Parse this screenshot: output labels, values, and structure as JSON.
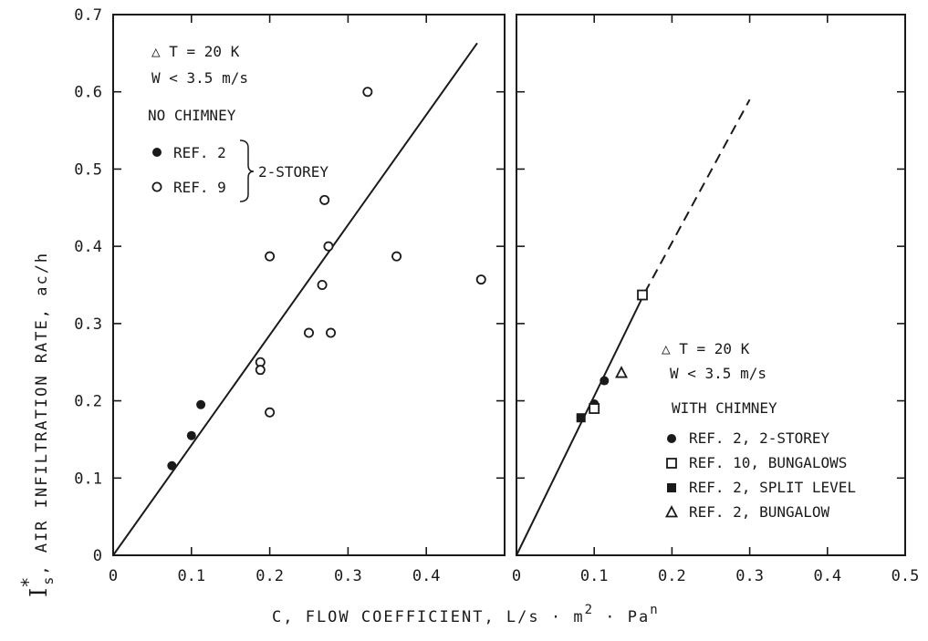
{
  "chart_data": [
    {
      "type": "scatter",
      "panel": "left",
      "xlim": [
        0,
        0.5
      ],
      "ylim": [
        0,
        0.7
      ],
      "x_ticks": [
        "0",
        "0.1",
        "0.2",
        "0.3",
        "0.4"
      ],
      "y_ticks": [
        "0",
        "0.1",
        "0.2",
        "0.3",
        "0.4",
        "0.5",
        "0.6",
        "0.7"
      ],
      "annotations": [
        "△ T = 20 K",
        "W < 3.5 m/s",
        "NO CHIMNEY"
      ],
      "legend_group_label": "2-STOREY",
      "legend": [
        {
          "marker": "filled-circle",
          "label": "REF. 2"
        },
        {
          "marker": "open-circle",
          "label": "REF. 9"
        }
      ],
      "series": [
        {
          "ref": "REF. 2",
          "marker": "filled-circle",
          "points": [
            [
              0.075,
              0.116
            ],
            [
              0.1,
              0.155
            ],
            [
              0.112,
              0.195
            ]
          ]
        },
        {
          "ref": "REF. 9",
          "marker": "open-circle",
          "points": [
            [
              0.2,
              0.387
            ],
            [
              0.27,
              0.46
            ],
            [
              0.275,
              0.4
            ],
            [
              0.325,
              0.6
            ],
            [
              0.362,
              0.387
            ],
            [
              0.47,
              0.357
            ],
            [
              0.25,
              0.288
            ],
            [
              0.278,
              0.288
            ],
            [
              0.267,
              0.35
            ],
            [
              0.188,
              0.25
            ],
            [
              0.188,
              0.24
            ],
            [
              0.2,
              0.185
            ]
          ]
        }
      ],
      "fit_line": {
        "from": [
          0,
          0
        ],
        "to": [
          0.465,
          0.663
        ],
        "style": "solid"
      }
    },
    {
      "type": "scatter",
      "panel": "right",
      "xlim": [
        0,
        0.5
      ],
      "ylim": [
        0,
        0.7
      ],
      "x_ticks": [
        "0",
        "0.1",
        "0.2",
        "0.3",
        "0.4",
        "0.5"
      ],
      "annotations": [
        "△ T = 20 K",
        "W < 3.5 m/s",
        "WITH CHIMNEY"
      ],
      "legend": [
        {
          "marker": "filled-circle",
          "label": "REF. 2, 2-STOREY"
        },
        {
          "marker": "open-square",
          "label": "REF. 10, BUNGALOWS"
        },
        {
          "marker": "filled-square",
          "label": "REF. 2, SPLIT LEVEL"
        },
        {
          "marker": "open-triangle",
          "label": "REF. 2, BUNGALOW"
        }
      ],
      "series": [
        {
          "ref": "REF. 2, 2-STOREY",
          "marker": "filled-circle",
          "points": [
            [
              0.113,
              0.226
            ],
            [
              0.1,
              0.196
            ]
          ]
        },
        {
          "ref": "REF. 10, BUNGALOWS",
          "marker": "open-square",
          "points": [
            [
              0.162,
              0.337
            ],
            [
              0.1,
              0.19
            ]
          ]
        },
        {
          "ref": "REF. 2, SPLIT LEVEL",
          "marker": "filled-square",
          "points": [
            [
              0.083,
              0.178
            ]
          ]
        },
        {
          "ref": "REF. 2, BUNGALOW",
          "marker": "open-triangle",
          "points": [
            [
              0.135,
              0.236
            ]
          ]
        }
      ],
      "fit_line": {
        "from": [
          0,
          0
        ],
        "to": [
          0.165,
          0.34
        ],
        "style": "solid"
      },
      "extrapolation_line": {
        "from": [
          0.165,
          0.34
        ],
        "to": [
          0.3,
          0.59
        ],
        "style": "dashed"
      }
    }
  ],
  "y_axis_title": "I*s, AIR INFILTRATION RATE, ac/h",
  "x_axis_title": "C, FLOW COEFFICIENT, L/s · m² · Pa",
  "x_axis_title_superscript": "n",
  "y_axis_title_main": "I",
  "y_axis_title_super": "*",
  "y_axis_title_sub": "s",
  "y_axis_title_rest": ", AIR INFILTRATION RATE, ac/h",
  "x_axis_title_part1": "C, FLOW COEFFICIENT, L/s · m",
  "x_axis_title_sup2": "2",
  "x_axis_title_part2": " · Pa",
  "colors": {
    "ink": "#1a1a1a",
    "background": "#ffffff"
  }
}
